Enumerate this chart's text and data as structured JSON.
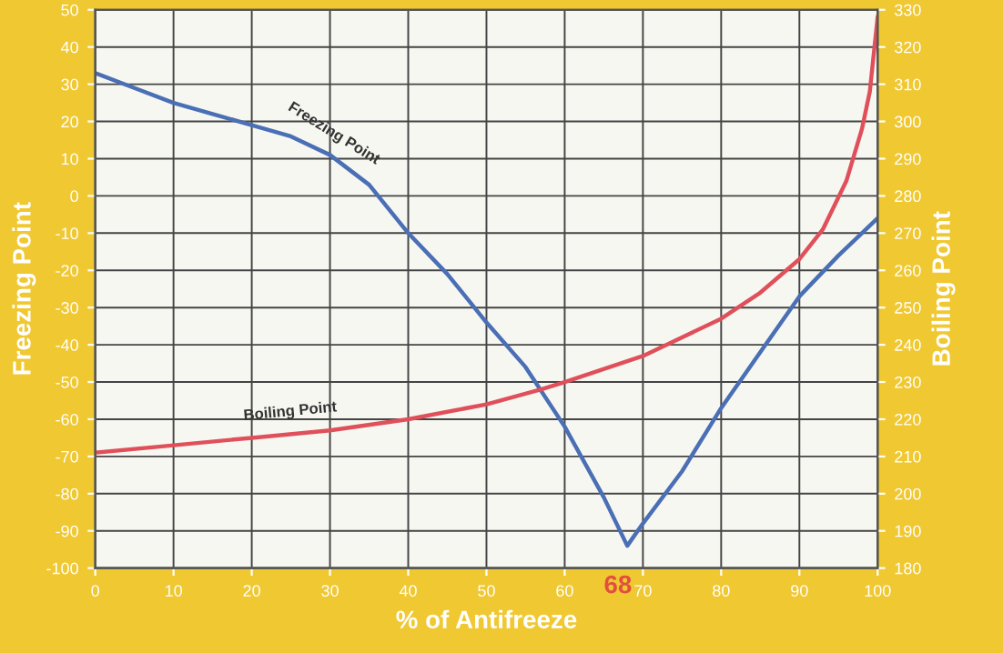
{
  "chart_data": {
    "type": "line",
    "xlabel": "% of Antifreeze",
    "ylabel": "Freezing Point",
    "y2label": "Boiling Point",
    "xlim": [
      0,
      100
    ],
    "xticks": [
      0,
      10,
      20,
      30,
      40,
      50,
      60,
      70,
      80,
      90,
      100
    ],
    "ylim": [
      -100,
      50
    ],
    "yticks": [
      -100,
      -90,
      -80,
      -70,
      -60,
      -50,
      -40,
      -30,
      -20,
      -10,
      0,
      10,
      20,
      30,
      40,
      50
    ],
    "y2lim": [
      180,
      330
    ],
    "y2ticks": [
      180,
      190,
      200,
      210,
      220,
      230,
      240,
      250,
      260,
      270,
      280,
      290,
      300,
      310,
      320,
      330
    ],
    "grid": true,
    "legend": false,
    "marker": "none",
    "line_style": "solid",
    "annotations": [
      "68"
    ],
    "series": [
      {
        "name": "Freezing Point",
        "color": "#4a6fb5",
        "x": [
          0,
          5,
          10,
          15,
          20,
          25,
          30,
          35,
          40,
          45,
          50,
          55,
          60,
          65,
          68,
          70,
          75,
          80,
          85,
          90,
          95,
          100
        ],
        "values": [
          33,
          29,
          25,
          22,
          19,
          16,
          11,
          3,
          -10,
          -21,
          -34,
          -46,
          -62,
          -81,
          -94,
          -88,
          -74,
          -57,
          -42,
          -27,
          -16,
          -6
        ]
      },
      {
        "name": "Boiling Point",
        "color": "#e0505a",
        "axis": "y2",
        "x": [
          0,
          10,
          20,
          30,
          40,
          50,
          57,
          60,
          70,
          80,
          85,
          90,
          93,
          96,
          98,
          99,
          100
        ],
        "values": [
          211,
          213,
          215,
          217,
          220,
          224,
          228,
          230,
          237,
          247,
          254,
          263,
          271,
          284,
          298,
          308,
          328
        ]
      }
    ]
  }
}
